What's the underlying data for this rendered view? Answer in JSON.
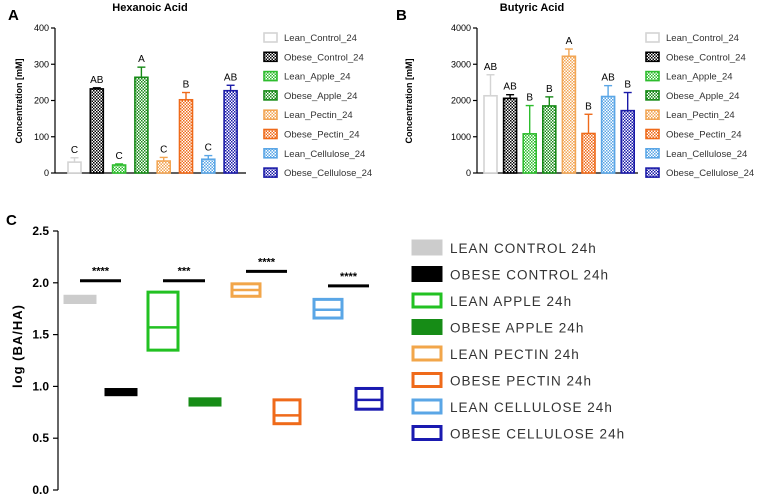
{
  "chart_data": [
    {
      "panel": "A",
      "type": "bar",
      "title": "Hexanoic Acid",
      "ylabel": "Concentration [mM]",
      "ylim": [
        0,
        400
      ],
      "yticks": [
        0,
        100,
        200,
        300,
        400
      ],
      "series": [
        {
          "name": "Lean_Control_24",
          "value": 30,
          "error": 12,
          "letter": "C",
          "color": "#d4d4d4",
          "fill": "plain"
        },
        {
          "name": "Obese_Control_24",
          "value": 232,
          "error": 3,
          "letter": "AB",
          "color": "#000000",
          "fill": "checker"
        },
        {
          "name": "Lean_Apple_24",
          "value": 22,
          "error": 3,
          "letter": "C",
          "color": "#2ebd2e",
          "fill": "checker"
        },
        {
          "name": "Obese_Apple_24",
          "value": 264,
          "error": 28,
          "letter": "A",
          "color": "#178a17",
          "fill": "checker"
        },
        {
          "name": "Lean_Pectin_24",
          "value": 33,
          "error": 10,
          "letter": "C",
          "color": "#f2a655",
          "fill": "checker"
        },
        {
          "name": "Obese_Pectin_24",
          "value": 202,
          "error": 20,
          "letter": "B",
          "color": "#ef6a1a",
          "fill": "checker"
        },
        {
          "name": "Lean_Cellulose_24",
          "value": 38,
          "error": 10,
          "letter": "C",
          "color": "#5aa6e6",
          "fill": "checker"
        },
        {
          "name": "Obese_Cellulose_24",
          "value": 227,
          "error": 15,
          "letter": "AB",
          "color": "#1a1aa8",
          "fill": "checker"
        }
      ]
    },
    {
      "panel": "B",
      "type": "bar",
      "title": "Butyric Acid",
      "ylabel": "Concentration [mM]",
      "ylim": [
        0,
        4000
      ],
      "yticks": [
        0,
        1000,
        2000,
        3000,
        4000
      ],
      "series": [
        {
          "name": "Lean_Control_24",
          "value": 2130,
          "error": 580,
          "letter": "AB",
          "color": "#d4d4d4",
          "fill": "plain"
        },
        {
          "name": "Obese_Control_24",
          "value": 2060,
          "error": 100,
          "letter": "AB",
          "color": "#000000",
          "fill": "checker"
        },
        {
          "name": "Lean_Apple_24",
          "value": 1080,
          "error": 780,
          "letter": "B",
          "color": "#2ebd2e",
          "fill": "checker"
        },
        {
          "name": "Obese_Apple_24",
          "value": 1850,
          "error": 250,
          "letter": "B",
          "color": "#178a17",
          "fill": "checker"
        },
        {
          "name": "Lean_Pectin_24",
          "value": 3220,
          "error": 200,
          "letter": "A",
          "color": "#f2a655",
          "fill": "checker"
        },
        {
          "name": "Obese_Pectin_24",
          "value": 1090,
          "error": 530,
          "letter": "B",
          "color": "#ef6a1a",
          "fill": "checker"
        },
        {
          "name": "Lean_Cellulose_24",
          "value": 2110,
          "error": 300,
          "letter": "AB",
          "color": "#5aa6e6",
          "fill": "checker"
        },
        {
          "name": "Obese_Cellulose_24",
          "value": 1720,
          "error": 500,
          "letter": "B",
          "color": "#1a1aa8",
          "fill": "checker"
        }
      ]
    },
    {
      "panel": "C",
      "type": "box",
      "ylabel": "log (BA/HA)",
      "ylim": [
        0.0,
        2.5
      ],
      "yticks": [
        "0.0",
        "0.5",
        "1.0",
        "1.5",
        "2.0",
        "2.5"
      ],
      "boxes": [
        {
          "name": "LEAN CONTROL 24h",
          "low": 1.81,
          "mid": 1.84,
          "high": 1.87,
          "color": "#cccccc",
          "solid": true
        },
        {
          "name": "OBESE CONTROL 24h",
          "low": 0.92,
          "mid": 0.945,
          "high": 0.97,
          "color": "#000000",
          "solid": true
        },
        {
          "name": "LEAN APPLE 24h",
          "low": 1.35,
          "mid": 1.57,
          "high": 1.91,
          "color": "#22c122",
          "solid": false
        },
        {
          "name": "OBESE APPLE 24h",
          "low": 0.82,
          "mid": 0.85,
          "high": 0.88,
          "color": "#168c16",
          "solid": true
        },
        {
          "name": "LEAN PECTIN 24h",
          "low": 1.87,
          "mid": 1.93,
          "high": 1.99,
          "color": "#f2a64a",
          "solid": false
        },
        {
          "name": "OBESE PECTIN 24h",
          "low": 0.64,
          "mid": 0.72,
          "high": 0.87,
          "color": "#ef6a1a",
          "solid": false
        },
        {
          "name": "LEAN CELLULOSE 24h",
          "low": 1.66,
          "mid": 1.74,
          "high": 1.84,
          "color": "#5aa6e6",
          "solid": false
        },
        {
          "name": "OBESE CELLULOSE 24h",
          "low": 0.78,
          "mid": 0.87,
          "high": 0.98,
          "color": "#1a1ab0",
          "solid": false
        }
      ],
      "significance": [
        {
          "pair": [
            0,
            1
          ],
          "label": "****",
          "y": 2.02
        },
        {
          "pair": [
            2,
            3
          ],
          "label": "***",
          "y": 2.02
        },
        {
          "pair": [
            4,
            5
          ],
          "label": "****",
          "y": 2.11
        },
        {
          "pair": [
            6,
            7
          ],
          "label": "****",
          "y": 1.97
        }
      ]
    }
  ]
}
